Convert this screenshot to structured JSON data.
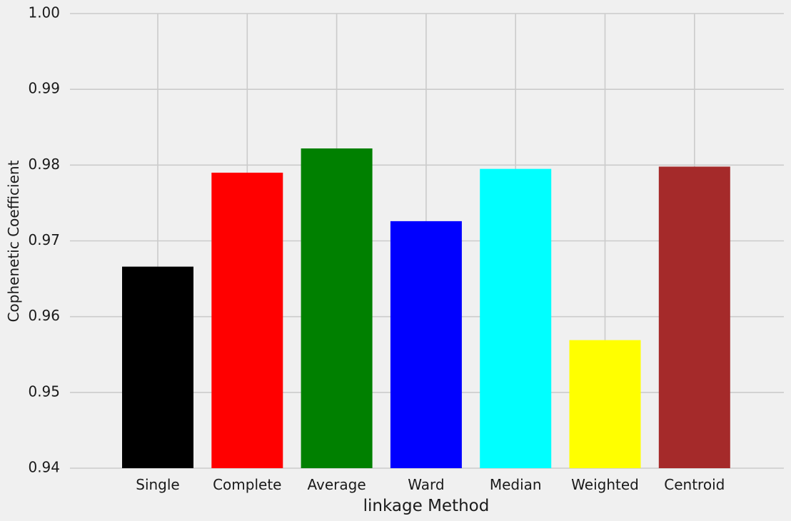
{
  "chart_data": {
    "type": "bar",
    "title": "",
    "xlabel": "linkage Method",
    "ylabel": "Cophenetic Coefficient",
    "categories": [
      "Single",
      "Complete",
      "Average",
      "Ward",
      "Median",
      "Weighted",
      "Centroid"
    ],
    "values": [
      0.9666,
      0.979,
      0.9822,
      0.9726,
      0.9795,
      0.9569,
      0.9798
    ],
    "colors": [
      "#000000",
      "#ff0000",
      "#008000",
      "#0000ff",
      "#00ffff",
      "#ffff00",
      "#a52a2a"
    ],
    "ylim": [
      0.94,
      1.0
    ],
    "yticks": [
      "0.94",
      "0.95",
      "0.96",
      "0.97",
      "0.98",
      "0.99",
      "1.00"
    ],
    "grid": true,
    "background": "#f0f0f0",
    "grid_color": "#cbcbcb"
  }
}
